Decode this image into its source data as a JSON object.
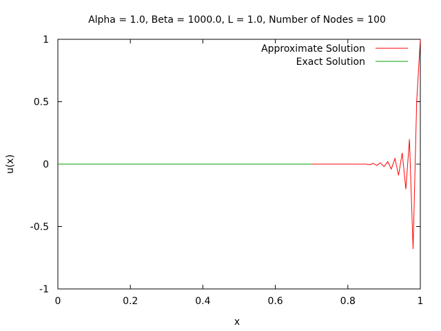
{
  "chart_data": {
    "type": "line",
    "title": "Alpha = 1.0, Beta = 1000.0, L = 1.0, Number of Nodes = 100",
    "xlabel": "x",
    "ylabel": "u(x)",
    "xlim": [
      0,
      1
    ],
    "ylim": [
      -1,
      1
    ],
    "x_ticks": [
      0,
      0.2,
      0.4,
      0.6,
      0.8,
      1
    ],
    "x_tick_labels": [
      "0",
      "0.2",
      "0.4",
      "0.6",
      "0.8",
      "1"
    ],
    "y_ticks": [
      -1,
      -0.5,
      0,
      0.5,
      1
    ],
    "y_tick_labels": [
      "-1",
      "-0.5",
      "0",
      "0.5",
      "1"
    ],
    "grid": false,
    "legend_position": "top-right",
    "series": [
      {
        "name": "Approximate Solution",
        "color": "#ff0000",
        "x": [
          0,
          0.7,
          0.85,
          0.86,
          0.87,
          0.88,
          0.89,
          0.9,
          0.91,
          0.92,
          0.93,
          0.94,
          0.95,
          0.96,
          0.97,
          0.98,
          0.99,
          1.0
        ],
        "y": [
          0,
          0,
          0.0,
          -0.005,
          0.005,
          -0.01,
          0.01,
          -0.02,
          0.02,
          -0.04,
          0.045,
          -0.09,
          0.09,
          -0.2,
          0.2,
          -0.68,
          0.5,
          1.0
        ]
      },
      {
        "name": "Exact Solution",
        "color": "#00a000",
        "x": [
          0,
          0.7
        ],
        "y": [
          0,
          0
        ]
      }
    ]
  }
}
